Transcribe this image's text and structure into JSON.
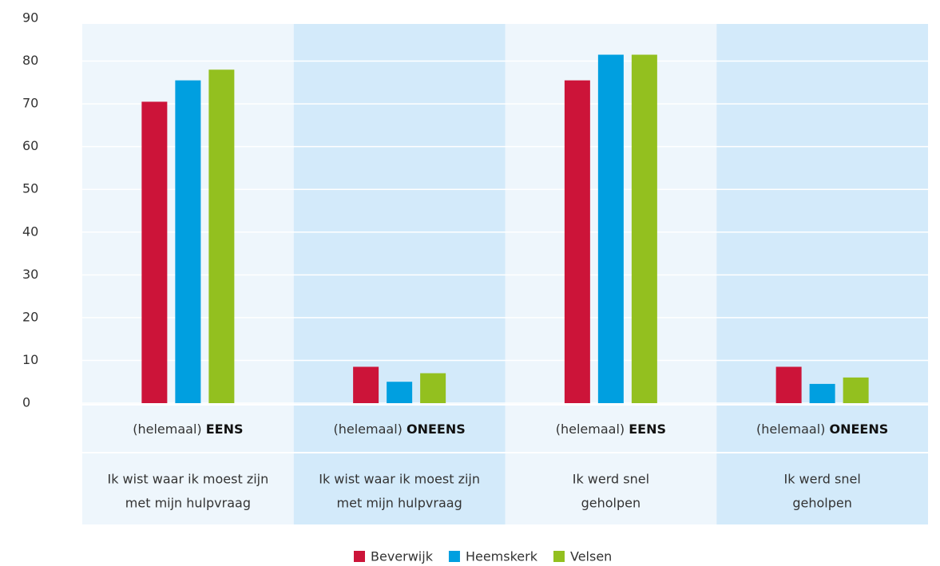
{
  "chart_data": {
    "type": "bar",
    "categories": [
      {
        "prefix": "(helemaal)",
        "answer": "EENS",
        "question": [
          "Ik wist waar ik moest zijn",
          "met mijn hulpvraag"
        ]
      },
      {
        "prefix": "(helemaal)",
        "answer": "ONEENS",
        "question": [
          "Ik wist waar ik moest zijn",
          "met mijn hulpvraag"
        ]
      },
      {
        "prefix": "(helemaal)",
        "answer": "EENS",
        "question": [
          "Ik werd snel",
          "geholpen"
        ]
      },
      {
        "prefix": "(helemaal)",
        "answer": "ONEENS",
        "question": [
          "Ik werd snel",
          "geholpen"
        ]
      }
    ],
    "series": [
      {
        "name": "Beverwijk",
        "color": "#cc1439",
        "values": [
          70.5,
          8.5,
          75.5,
          8.5
        ]
      },
      {
        "name": "Heemskerk",
        "color": "#009fe0",
        "values": [
          75.5,
          5,
          81.5,
          4.5
        ]
      },
      {
        "name": "Velsen",
        "color": "#93c01f",
        "values": [
          78,
          7,
          81.5,
          6
        ]
      }
    ],
    "ylim": [
      0,
      90
    ],
    "yticks": [
      0,
      10,
      20,
      30,
      40,
      50,
      60,
      70,
      80,
      90
    ],
    "grid": true,
    "legend": "bottom"
  }
}
